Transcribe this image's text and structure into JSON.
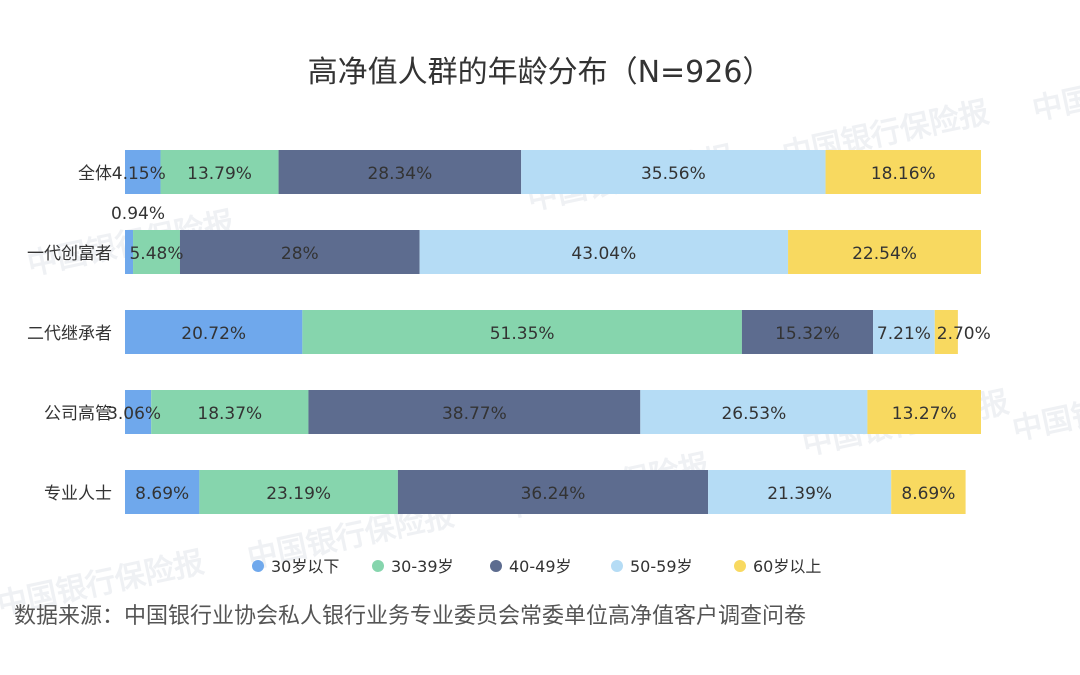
{
  "chart_data": {
    "type": "bar",
    "orientation": "horizontal",
    "stacked": true,
    "percent": true,
    "title": "高净值人群的年龄分布（N=926）",
    "categories": [
      "全体",
      "一代创富者",
      "二代继承者",
      "公司高管",
      "专业人士"
    ],
    "series": [
      {
        "name": "30岁以下",
        "color": "#6fa8ec",
        "values": [
          4.15,
          0.94,
          20.72,
          3.06,
          8.69
        ],
        "labels": [
          "4.15%",
          "0.94%",
          "20.72%",
          "3.06%",
          "8.69%"
        ]
      },
      {
        "name": "30-39岁",
        "color": "#86d5ad",
        "values": [
          13.79,
          5.48,
          51.35,
          18.37,
          23.19
        ],
        "labels": [
          "13.79%",
          "5.48%",
          "51.35%",
          "18.37%",
          "23.19%"
        ]
      },
      {
        "name": "40-49岁",
        "color": "#5d6c8f",
        "values": [
          28.34,
          28,
          15.32,
          38.77,
          36.24
        ],
        "labels": [
          "28.34%",
          "28%",
          "15.32%",
          "38.77%",
          "36.24%"
        ]
      },
      {
        "name": "50-59岁",
        "color": "#b5dcf5",
        "values": [
          35.56,
          43.04,
          7.21,
          26.53,
          21.39
        ],
        "labels": [
          "35.56%",
          "43.04%",
          "7.21%",
          "26.53%",
          "21.39%"
        ]
      },
      {
        "name": "60岁以上",
        "color": "#f8d960",
        "values": [
          18.16,
          22.54,
          2.7,
          13.27,
          8.69
        ],
        "labels": [
          "18.16%",
          "22.54%",
          "2.70%",
          "13.27%",
          "8.69%"
        ]
      }
    ],
    "xlim": [
      0,
      100
    ],
    "legend_position": "bottom",
    "grid": false
  },
  "source": "数据来源：中国银行业协会私人银行业务专业委员会常委单位高净值客户调查问卷",
  "watermark": "中国银行保险报"
}
